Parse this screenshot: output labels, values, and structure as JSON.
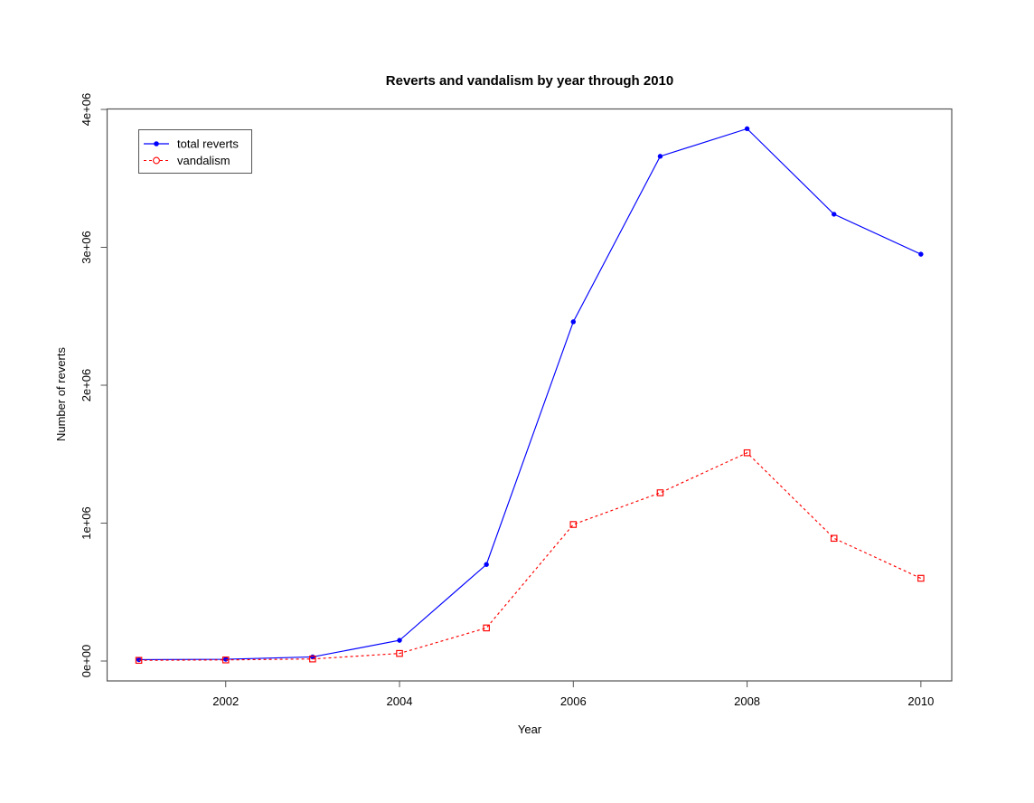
{
  "chart_data": {
    "type": "line",
    "title": "Reverts and vandalism by year through 2010",
    "xlabel": "Year",
    "ylabel": "Number of reverts",
    "x": [
      2001,
      2002,
      2003,
      2004,
      2005,
      2006,
      2007,
      2008,
      2009,
      2010
    ],
    "series": [
      {
        "name": "total reverts",
        "color": "#0000ff",
        "line_style": "solid",
        "marker": "filled-circle",
        "values": [
          10000,
          13000,
          30000,
          150000,
          700000,
          2460000,
          3660000,
          3860000,
          3240000,
          2950000
        ]
      },
      {
        "name": "vandalism",
        "color": "#ff0000",
        "line_style": "dashed",
        "marker": "open-square",
        "legend_marker": "open-circle",
        "values": [
          5000,
          8000,
          15000,
          55000,
          240000,
          990000,
          1220000,
          1510000,
          890000,
          600000
        ]
      }
    ],
    "x_axis": {
      "ticks": [
        2002,
        2004,
        2006,
        2008,
        2010
      ]
    },
    "y_axis": {
      "ticks": [
        {
          "value": 0,
          "label": "0e+00"
        },
        {
          "value": 1000000,
          "label": "1e+06"
        },
        {
          "value": 2000000,
          "label": "2e+06"
        },
        {
          "value": 3000000,
          "label": "3e+06"
        },
        {
          "value": 4000000,
          "label": "4e+06"
        }
      ]
    },
    "xlim": [
      2000.64,
      2010.36
    ],
    "ylim": [
      -144000,
      4003000
    ],
    "grid": false,
    "legend_position": "top-left",
    "background": "#ffffff"
  }
}
